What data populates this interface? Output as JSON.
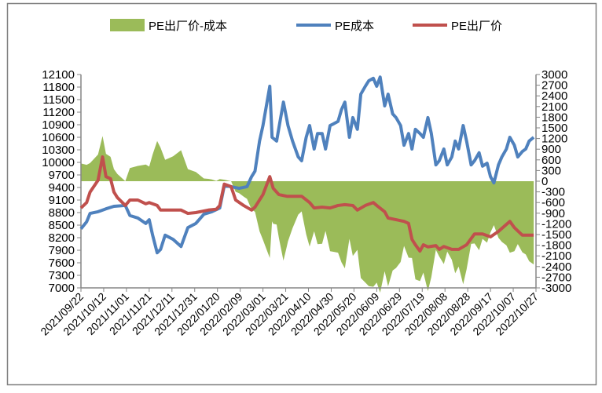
{
  "chart_data": {
    "type": "line",
    "title": "",
    "legend_position": "top",
    "legend": [
      {
        "name": "PE出厂价-成本",
        "kind": "area",
        "color": "#9BBB59"
      },
      {
        "name": "PE成本",
        "kind": "line",
        "color": "#4F81BD"
      },
      {
        "name": "PE出厂价",
        "kind": "line",
        "color": "#C0504D"
      }
    ],
    "x_start_date": "2021/09/22",
    "x_unit": "days since start",
    "x_range": [
      0,
      400
    ],
    "x_tick_labels": [
      "2021/09/22",
      "2021/10/12",
      "2021/11/01",
      "2021/11/21",
      "2021/12/11",
      "2021/12/31",
      "2022/01/20",
      "2022/02/09",
      "2022/03/01",
      "2022/03/21",
      "2022/04/10",
      "2022/04/30",
      "2022/05/20",
      "2022/06/09",
      "2022/06/29",
      "2022/07/19",
      "2022/08/08",
      "2022/08/28",
      "2022/09/17",
      "2022/10/07",
      "2022/10/27"
    ],
    "y_left": {
      "min": 7000,
      "max": 12100,
      "step": 300,
      "ticks": [
        "12100",
        "11800",
        "11500",
        "11200",
        "10900",
        "10600",
        "10300",
        "10000",
        "9700",
        "9400",
        "9100",
        "8800",
        "8500",
        "8200",
        "7900",
        "7600",
        "7300",
        "7000"
      ]
    },
    "y_right": {
      "min": -3000,
      "max": 3000,
      "step": 300,
      "ticks": [
        "3000",
        "2700",
        "2400",
        "2100",
        "1800",
        "1500",
        "1200",
        "900",
        "600",
        "300",
        "0",
        "-300",
        "-600",
        "-900",
        "-1200",
        "-1500",
        "-1800",
        "-2100",
        "-2400",
        "-2700",
        "-3000"
      ]
    },
    "series": [
      {
        "name": "PE成本",
        "axis": "left",
        "x": [
          0,
          5,
          8,
          15,
          22,
          29,
          39,
          43,
          50,
          57,
          60,
          63,
          67,
          70,
          74,
          81,
          88,
          94,
          101,
          108,
          115,
          122,
          126,
          132,
          139,
          146,
          150,
          153,
          157,
          160,
          163,
          166,
          168,
          172,
          175,
          178,
          182,
          186,
          191,
          194,
          198,
          201,
          205,
          208,
          212,
          215,
          219,
          222,
          226,
          229,
          232,
          236,
          239,
          243,
          246,
          250,
          253,
          257,
          260,
          263,
          267,
          270,
          274,
          277,
          281,
          284,
          288,
          291,
          294,
          298,
          301,
          305,
          308,
          312,
          315,
          319,
          322,
          326,
          329,
          332,
          336,
          339,
          343,
          346,
          350,
          353,
          357,
          360,
          363,
          367,
          370,
          374,
          377,
          381,
          384,
          388,
          391,
          394,
          398
        ],
        "y": [
          8410,
          8580,
          8780,
          8820,
          8890,
          8950,
          8970,
          8730,
          8670,
          8540,
          8630,
          8260,
          7840,
          7920,
          8260,
          8160,
          7990,
          8440,
          8540,
          8760,
          8820,
          8910,
          9440,
          9420,
          9380,
          9420,
          9660,
          9790,
          10510,
          10880,
          11350,
          11820,
          10600,
          10510,
          10980,
          11440,
          10880,
          10510,
          10130,
          10040,
          10600,
          10880,
          10320,
          10690,
          10690,
          10320,
          10880,
          10920,
          10980,
          11260,
          11440,
          10600,
          11070,
          10790,
          11630,
          11820,
          11950,
          12010,
          11820,
          12040,
          11350,
          11630,
          11160,
          11070,
          10880,
          10410,
          10690,
          10320,
          10790,
          10690,
          10600,
          11070,
          10690,
          9940,
          10040,
          10320,
          9940,
          10130,
          10510,
          10320,
          10880,
          10510,
          9940,
          10040,
          10230,
          9910,
          9980,
          9660,
          9510,
          9940,
          10130,
          10320,
          10600,
          10410,
          10130,
          10260,
          10320,
          10510,
          10600
        ]
      },
      {
        "name": "PE出厂价",
        "axis": "left",
        "x": [
          0,
          5,
          8,
          15,
          19,
          22,
          26,
          29,
          32,
          39,
          43,
          50,
          57,
          60,
          67,
          70,
          77,
          88,
          94,
          101,
          112,
          119,
          122,
          126,
          132,
          136,
          143,
          150,
          153,
          160,
          166,
          169,
          174,
          181,
          188,
          194,
          201,
          205,
          212,
          219,
          226,
          232,
          239,
          243,
          250,
          257,
          260,
          267,
          270,
          277,
          284,
          288,
          291,
          294,
          298,
          301,
          305,
          312,
          315,
          319,
          326,
          332,
          339,
          346,
          353,
          360,
          367,
          377,
          381,
          388,
          398
        ],
        "y": [
          8910,
          9040,
          9290,
          9570,
          10130,
          9660,
          9610,
          9290,
          9160,
          8970,
          9100,
          9100,
          9010,
          9040,
          8970,
          8860,
          8860,
          8860,
          8780,
          8800,
          8860,
          8880,
          8970,
          9480,
          9420,
          9100,
          8970,
          8860,
          8930,
          9230,
          9660,
          9380,
          9230,
          9190,
          9190,
          9190,
          9040,
          8910,
          8930,
          8910,
          8970,
          8990,
          8970,
          8860,
          8970,
          9040,
          8970,
          8820,
          8670,
          8630,
          8590,
          8540,
          8160,
          8030,
          7880,
          8030,
          7980,
          8010,
          7920,
          7990,
          7920,
          7920,
          8030,
          8290,
          8290,
          8220,
          8350,
          8590,
          8440,
          8260,
          8260
        ]
      },
      {
        "name": "PE出厂价-成本",
        "axis": "right",
        "derived": "PE出厂价 minus PE成本"
      }
    ]
  }
}
